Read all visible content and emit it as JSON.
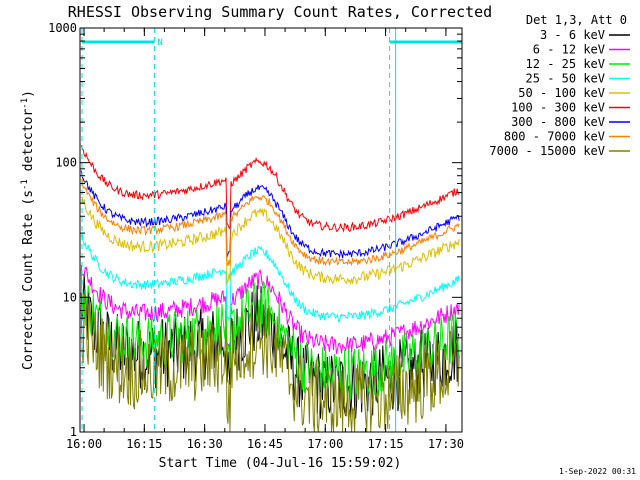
{
  "chart_data": {
    "type": "line",
    "title": "RHESSI Observing Summary Count Rates, Corrected",
    "xlabel": "Start Time (04-Jul-16 15:59:02)",
    "ylabel": "Corrected Count Rate (s",
    "ylabel_sup1": "-1",
    "ylabel_mid": " detector",
    "ylabel_sup2": "-1",
    "ylabel_end": ")",
    "yscale": "log",
    "ylim": [
      1,
      1000
    ],
    "xlim_minutes": [
      0,
      95
    ],
    "x_ticks": [
      {
        "label": "16:00",
        "min": 1
      },
      {
        "label": "16:15",
        "min": 16
      },
      {
        "label": "16:30",
        "min": 31
      },
      {
        "label": "16:45",
        "min": 46
      },
      {
        "label": "17:00",
        "min": 61
      },
      {
        "label": "17:15",
        "min": 76
      },
      {
        "label": "17:30",
        "min": 91
      }
    ],
    "y_ticks": [
      {
        "label": "1",
        "value": 1
      },
      {
        "label": "10",
        "value": 10
      },
      {
        "label": "100",
        "value": 100
      },
      {
        "label": "1000",
        "value": 1000
      }
    ],
    "legend_title": "Det 1,3, Att 0",
    "legend_position": "top-right, outside plot",
    "timestamp": "1-Sep-2022 00:31",
    "night_marker": "N",
    "night_intervals_minutes": [
      [
        0.5,
        18.5
      ],
      [
        77,
        95
      ]
    ],
    "series": [
      {
        "name": "3 - 6 keV",
        "color": "#000000",
        "base": 4.0,
        "noise": 0.45
      },
      {
        "name": "6 - 12 keV",
        "color": "#ff00ff",
        "base": 8.0,
        "noise": 0.12
      },
      {
        "name": "12 - 25 keV",
        "color": "#00ee00",
        "base": 5.0,
        "noise": 0.35
      },
      {
        "name": "25 - 50 keV",
        "color": "#00ffff",
        "base": 13.0,
        "noise": 0.06
      },
      {
        "name": "50 - 100 keV",
        "color": "#e0c000",
        "base": 25.0,
        "noise": 0.07
      },
      {
        "name": "100 - 300 keV",
        "color": "#ff0000",
        "base": 60.0,
        "noise": 0.05
      },
      {
        "name": "300 - 800 keV",
        "color": "#0000ff",
        "base": 38.0,
        "noise": 0.05
      },
      {
        "name": "800 - 7000 keV",
        "color": "#ff8000",
        "base": 33.0,
        "noise": 0.05
      },
      {
        "name": "7000 - 15000 keV",
        "color": "#808000",
        "base": 3.0,
        "noise": 0.5
      }
    ],
    "attenuator_change_minute": 36.5
  }
}
